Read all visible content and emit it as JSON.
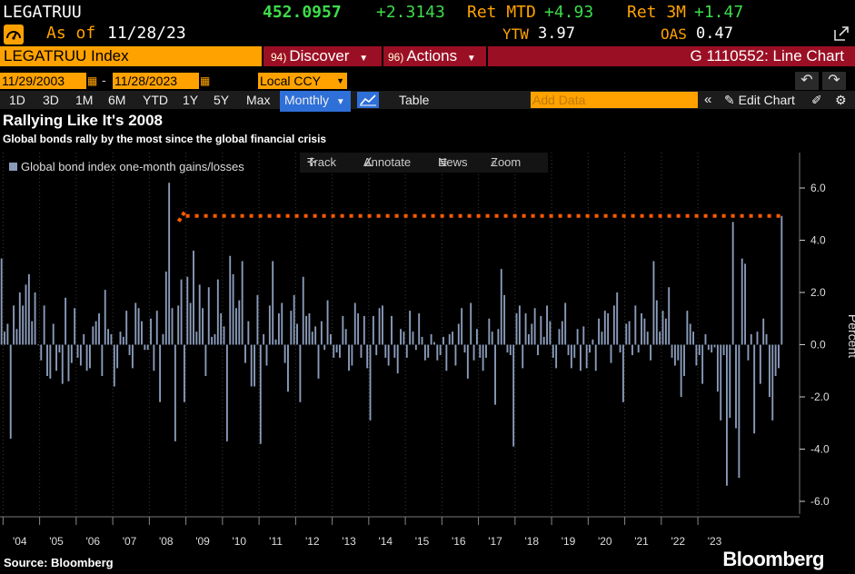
{
  "header": {
    "ticker": "LEGATRUU",
    "price": "452.0957",
    "change": "+2.3143",
    "ret_mtd_label": "Ret MTD",
    "ret_mtd": "+4.93",
    "ret_3m_label": "Ret 3M",
    "ret_3m": "+1.47",
    "as_of_label": "As of",
    "as_of_date": "11/28/23",
    "ytw_label": "YTW",
    "ytw": "3.97",
    "oas_label": "OAS",
    "oas": "0.47"
  },
  "menubar": {
    "security": "LEGATRUU Index",
    "discover_tag": "94)",
    "discover": "Discover",
    "actions_tag": "96)",
    "actions": "Actions",
    "function_title": "G 1110552: Line Chart"
  },
  "controls": {
    "start_date": "11/29/2003",
    "end_date": "11/28/2023",
    "currency": "Local CCY",
    "periods": [
      "1D",
      "3D",
      "1M",
      "6M",
      "YTD",
      "1Y",
      "5Y",
      "Max"
    ],
    "frequency": "Monthly",
    "table_label": "Table",
    "add_data_placeholder": "Add Data",
    "edit_chart": "Edit Chart"
  },
  "chart_tools": {
    "track": "Track",
    "annotate": "Annotate",
    "news": "News",
    "zoom": "Zoom"
  },
  "footer": {
    "source": "Source: Bloomberg",
    "brand": "Bloomberg"
  },
  "colors": {
    "bars": "#8a9bba",
    "reference_line": "#ff5a00",
    "price_green": "#3ddc4a",
    "label_orange": "#ffa200",
    "menubar_red": "#9b0f24"
  },
  "chart_data": {
    "type": "bar",
    "title": "Rallying Like It's 2008",
    "subtitle": "Global bonds rally by the most since the global financial crisis",
    "ylabel": "Percent",
    "ylim": [
      -6.8,
      7.2
    ],
    "yticks": [
      -6.0,
      -4.0,
      -2.0,
      0.0,
      2.0,
      4.0,
      6.0
    ],
    "x_tick_labels": [
      "'04",
      "'05",
      "'06",
      "'07",
      "'08",
      "'09",
      "'10",
      "'11",
      "'12",
      "'13",
      "'14",
      "'15",
      "'16",
      "'17",
      "'18",
      "'19",
      "'20",
      "'21",
      "'22",
      "'23"
    ],
    "x_start": "2003-12",
    "x_end": "2023-11",
    "grid": "vertical",
    "legend_position": "top-left",
    "reference_line_value": 4.93,
    "reference_line_style": "dotted",
    "series": [
      {
        "name": "Global bond index one-month gains/losses",
        "values": [
          3.3,
          0.5,
          0.8,
          -3.6,
          1.5,
          0.6,
          2.0,
          1.5,
          2.3,
          2.7,
          0.9,
          2.0,
          0.0,
          -0.6,
          1.5,
          -1.2,
          -1.3,
          0.8,
          -1.0,
          -0.3,
          -1.5,
          1.8,
          -1.4,
          -0.7,
          1.4,
          -0.5,
          -0.8,
          0.4,
          -1.0,
          -0.9,
          0.7,
          0.9,
          1.2,
          -1.2,
          2.1,
          0.6,
          0.4,
          -1.6,
          -0.9,
          0.5,
          0.3,
          1.3,
          -0.4,
          -0.9,
          1.6,
          1.4,
          0.9,
          -0.2,
          -0.2,
          1.0,
          -1.0,
          1.3,
          -2.2,
          0.4,
          2.8,
          6.2,
          1.4,
          -3.7,
          1.5,
          2.5,
          -2.2,
          2.6,
          1.6,
          3.6,
          0.5,
          2.3,
          1.4,
          -1.2,
          2.2,
          0.3,
          0.4,
          2.5,
          1.2,
          0.7,
          -3.7,
          3.4,
          2.7,
          1.4,
          1.7,
          3.2,
          -0.7,
          0.9,
          -1.6,
          -1.6,
          1.9,
          -3.8,
          0.4,
          -0.8,
          1.5,
          3.2,
          0.2,
          1.2,
          1.6,
          -0.7,
          -1.8,
          1.3,
          1.9,
          0.8,
          -2.2,
          2.6,
          1.1,
          1.2,
          0.5,
          0.7,
          -1.3,
          0.9,
          -0.2,
          1.7,
          0.4,
          -0.5,
          -0.3,
          -0.5,
          1.1,
          0.6,
          -1.0,
          -0.8,
          1.6,
          1.2,
          -0.5,
          1.1,
          -0.9,
          -2.9,
          1.1,
          -0.4,
          1.4,
          1.5,
          -0.5,
          -0.8,
          1.1,
          -0.5,
          -1.1,
          0.6,
          0.5,
          -0.5,
          1.3,
          0.5,
          -0.2,
          1.2,
          0.3,
          -0.6,
          -0.5,
          0.4,
          0.1,
          -0.6,
          -0.4,
          0.3,
          -1.0,
          0.4,
          0.5,
          -0.8,
          0.8,
          1.4,
          -0.3,
          -1.3,
          1.6,
          -0.6,
          0.6,
          -0.5,
          -1.0,
          -0.5,
          1.0,
          0.5,
          -2.3,
          0.6,
          2.9,
          1.9,
          -0.3,
          -0.4,
          -3.9,
          1.2,
          1.5,
          -0.9,
          1.2,
          0.4,
          0.8,
          1.4,
          -0.4,
          1.1,
          0.3,
          1.5,
          0.9,
          -0.5,
          -0.9,
          0.6,
          0.9,
          1.6,
          -0.4,
          -0.9,
          -0.5,
          0.6,
          -1.0,
          0.7,
          -0.9,
          -0.3,
          0.2,
          -1.0,
          1.0,
          0.5,
          1.3,
          1.2,
          -0.7,
          1.5,
          2.0,
          -0.3,
          -2.2,
          0.8,
          0.9,
          -0.4,
          1.5,
          -0.3,
          1.2,
          1.0,
          0.5,
          -0.6,
          3.2,
          1.7,
          0.5,
          1.3,
          1.0,
          2.2,
          -0.5,
          -0.8,
          -0.6,
          -2.0,
          -1.2,
          1.3,
          0.8,
          0.5,
          -0.8,
          -0.4,
          -1.5,
          0.4,
          -0.2,
          -0.3,
          -0.1,
          -1.8,
          -2.9,
          -0.4,
          -5.4,
          -2.8,
          4.7,
          -3.2,
          -5.1,
          3.3,
          3.1,
          -0.6,
          0.4,
          -3.4,
          0.5,
          -1.5,
          1.0,
          0.4,
          -2.0,
          -2.9,
          -1.2,
          -0.9,
          4.93
        ]
      }
    ]
  }
}
